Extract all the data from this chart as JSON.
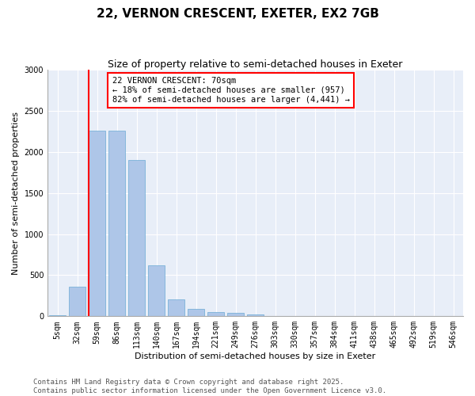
{
  "title": "22, VERNON CRESCENT, EXETER, EX2 7GB",
  "subtitle": "Size of property relative to semi-detached houses in Exeter",
  "xlabel": "Distribution of semi-detached houses by size in Exeter",
  "ylabel": "Number of semi-detached properties",
  "categories": [
    "5sqm",
    "32sqm",
    "59sqm",
    "86sqm",
    "113sqm",
    "140sqm",
    "167sqm",
    "194sqm",
    "221sqm",
    "249sqm",
    "276sqm",
    "303sqm",
    "330sqm",
    "357sqm",
    "384sqm",
    "411sqm",
    "438sqm",
    "465sqm",
    "492sqm",
    "519sqm",
    "546sqm"
  ],
  "values": [
    10,
    355,
    2260,
    2260,
    1900,
    620,
    210,
    90,
    50,
    45,
    25,
    5,
    0,
    0,
    0,
    0,
    0,
    0,
    0,
    0,
    0
  ],
  "bar_color": "#aec6e8",
  "bar_edge_color": "#6aaad4",
  "property_line_color": "red",
  "annotation_text": "22 VERNON CRESCENT: 70sqm\n← 18% of semi-detached houses are smaller (957)\n82% of semi-detached houses are larger (4,441) →",
  "annotation_box_color": "red",
  "annotation_fill": "white",
  "ylim": [
    0,
    3000
  ],
  "yticks": [
    0,
    500,
    1000,
    1500,
    2000,
    2500,
    3000
  ],
  "background_color": "#e8eef8",
  "grid_color": "white",
  "footer_line1": "Contains HM Land Registry data © Crown copyright and database right 2025.",
  "footer_line2": "Contains public sector information licensed under the Open Government Licence v3.0.",
  "title_fontsize": 11,
  "subtitle_fontsize": 9,
  "axis_label_fontsize": 8,
  "tick_fontsize": 7,
  "annotation_fontsize": 7.5,
  "footer_fontsize": 6.5
}
